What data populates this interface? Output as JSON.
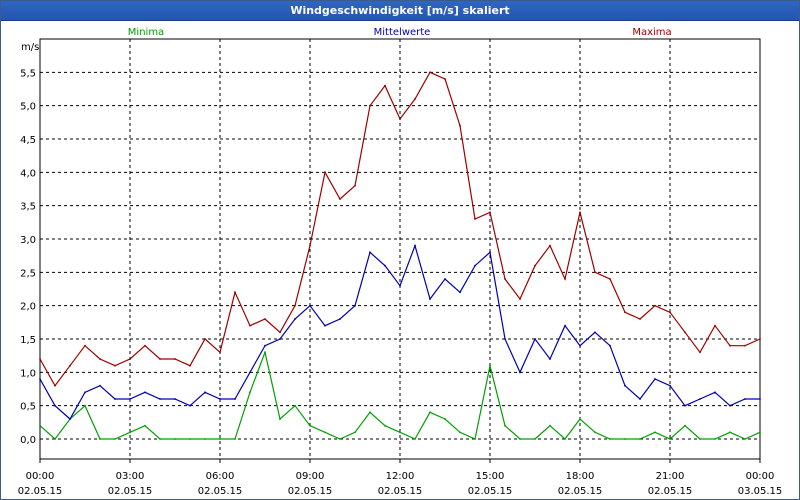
{
  "window": {
    "title": "Windgeschwindigkeit [m/s] skaliert"
  },
  "chart_data": {
    "type": "line",
    "title": "Windgeschwindigkeit [m/s] skaliert",
    "ylabel": "m/s",
    "xlabel": "",
    "ylim": [
      -0.3,
      6.0
    ],
    "xlim": [
      0,
      24
    ],
    "grid": true,
    "y_ticks": [
      "0,0",
      "0,5",
      "1,0",
      "1,5",
      "2,0",
      "2,5",
      "3,0",
      "3,5",
      "4,0",
      "4,5",
      "5,0",
      "5,5"
    ],
    "x_ticks": [
      {
        "time": "00:00",
        "date": "02.05.15"
      },
      {
        "time": "03:00",
        "date": "02.05.15"
      },
      {
        "time": "06:00",
        "date": "02.05.15"
      },
      {
        "time": "09:00",
        "date": "02.05.15"
      },
      {
        "time": "12:00",
        "date": "02.05.15"
      },
      {
        "time": "15:00",
        "date": "02.05.15"
      },
      {
        "time": "18:00",
        "date": "02.05.15"
      },
      {
        "time": "21:00",
        "date": "02.05.15"
      },
      {
        "time": "00:00",
        "date": "03.05.15"
      }
    ],
    "x": [
      0,
      0.5,
      1,
      1.5,
      2,
      2.5,
      3,
      3.5,
      4,
      4.5,
      5,
      5.5,
      6,
      6.5,
      7,
      7.5,
      8,
      8.5,
      9,
      9.5,
      10,
      10.5,
      11,
      11.5,
      12,
      12.5,
      13,
      13.5,
      14,
      14.5,
      15,
      15.5,
      16,
      16.5,
      17,
      17.5,
      18,
      18.5,
      19,
      19.5,
      20,
      20.5,
      21,
      21.5,
      22,
      22.5,
      23,
      23.5,
      24
    ],
    "series": [
      {
        "name": "Minima",
        "color": "#00a000",
        "values": [
          0.2,
          0.0,
          0.3,
          0.5,
          0.0,
          0.0,
          0.1,
          0.2,
          0.0,
          0.0,
          0.0,
          0.0,
          0.0,
          0.0,
          0.7,
          1.3,
          0.3,
          0.5,
          0.2,
          0.1,
          0.0,
          0.1,
          0.4,
          0.2,
          0.1,
          0.0,
          0.4,
          0.3,
          0.1,
          0.0,
          1.1,
          0.2,
          0.0,
          0.0,
          0.2,
          0.0,
          0.3,
          0.1,
          0.0,
          0.0,
          0.0,
          0.1,
          0.0,
          0.2,
          0.0,
          0.0,
          0.1,
          0.0,
          0.1
        ]
      },
      {
        "name": "Mittelwerte",
        "color": "#0000b0",
        "values": [
          0.9,
          0.5,
          0.3,
          0.7,
          0.8,
          0.6,
          0.6,
          0.7,
          0.6,
          0.6,
          0.5,
          0.7,
          0.6,
          0.6,
          1.0,
          1.4,
          1.5,
          1.8,
          2.0,
          1.7,
          1.8,
          2.0,
          2.8,
          2.6,
          2.3,
          2.9,
          2.1,
          2.4,
          2.2,
          2.6,
          2.8,
          1.5,
          1.0,
          1.5,
          1.2,
          1.7,
          1.4,
          1.6,
          1.4,
          0.8,
          0.6,
          0.9,
          0.8,
          0.5,
          0.6,
          0.7,
          0.5,
          0.6,
          0.6
        ]
      },
      {
        "name": "Maxima",
        "color": "#a00000",
        "values": [
          1.2,
          0.8,
          1.1,
          1.4,
          1.2,
          1.1,
          1.2,
          1.4,
          1.2,
          1.2,
          1.1,
          1.5,
          1.3,
          2.2,
          1.7,
          1.8,
          1.6,
          2.0,
          2.9,
          4.0,
          3.6,
          3.8,
          5.0,
          5.3,
          4.8,
          5.1,
          5.5,
          5.4,
          4.7,
          3.3,
          3.4,
          2.4,
          2.1,
          2.6,
          2.9,
          2.4,
          3.4,
          2.5,
          2.4,
          1.9,
          1.8,
          2.0,
          1.9,
          1.6,
          1.3,
          1.7,
          1.4,
          1.4,
          1.5
        ]
      }
    ]
  }
}
